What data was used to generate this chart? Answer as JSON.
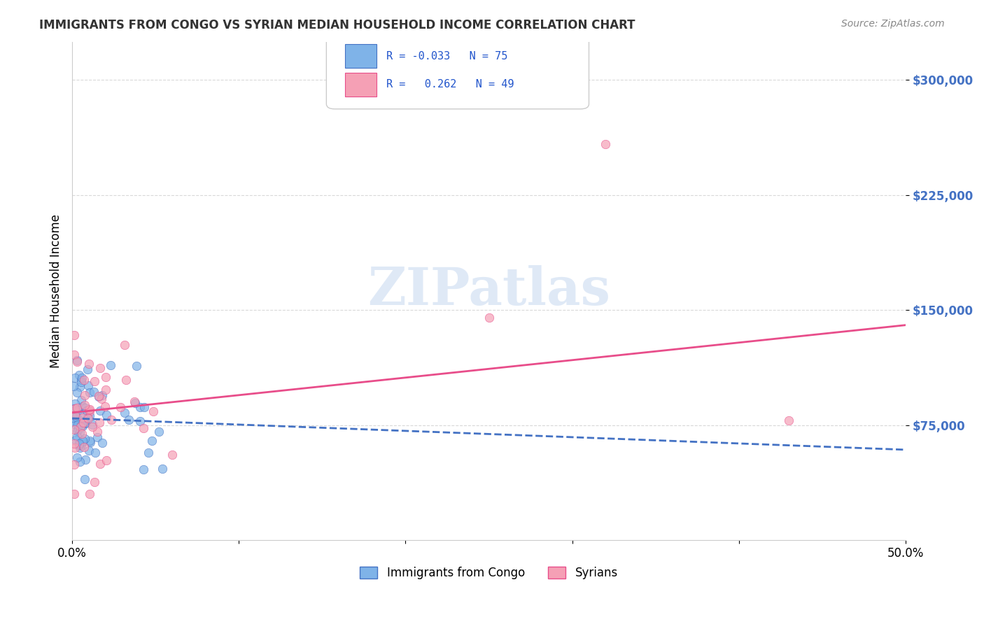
{
  "title": "IMMIGRANTS FROM CONGO VS SYRIAN MEDIAN HOUSEHOLD INCOME CORRELATION CHART",
  "source": "Source: ZipAtlas.com",
  "ylabel": "Median Household Income",
  "ytick_values": [
    75000,
    150000,
    225000,
    300000
  ],
  "ymin": 0,
  "ymax": 325000,
  "xmin": 0.0,
  "xmax": 0.5,
  "legend_r_congo": "-0.033",
  "legend_n_congo": "75",
  "legend_r_syrian": "0.262",
  "legend_n_syrian": "49",
  "color_congo": "#7fb3e8",
  "color_syrian": "#f5a0b5",
  "line_color_congo": "#4472c4",
  "line_color_syrian": "#e84d8a",
  "watermark": "ZIPatlas",
  "background_color": "#ffffff",
  "grid_color": "#d0d0d0"
}
